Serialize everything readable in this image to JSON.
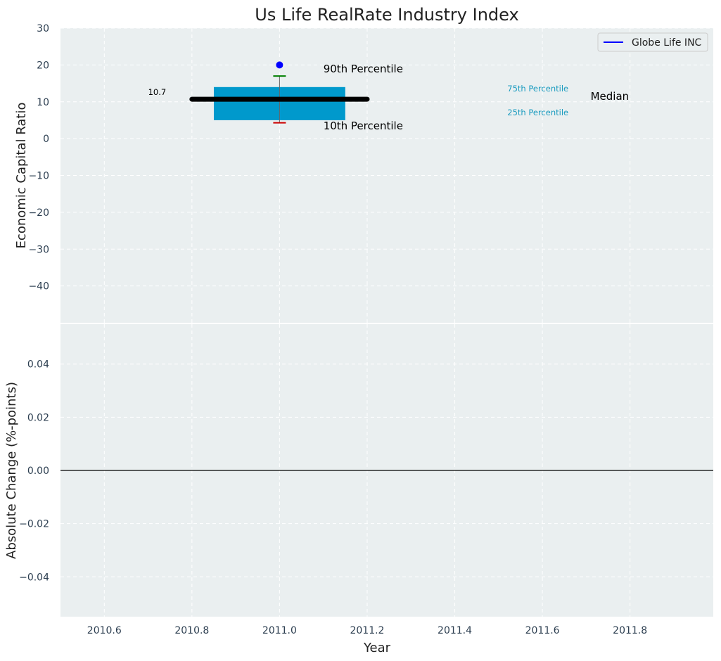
{
  "chart_data": [
    {
      "type": "box",
      "title": "Us Life RealRate Industry Index",
      "xlabel": "",
      "ylabel": "Economic Capital Ratio",
      "xlim": [
        2010.5,
        2011.99
      ],
      "ylim": [
        -50,
        30
      ],
      "yticks": [
        30,
        20,
        10,
        0,
        -10,
        -20,
        -30,
        -40
      ],
      "ytick_labels": [
        "30",
        "20",
        "10",
        "0",
        "−10",
        "−20",
        "−30",
        "−40"
      ],
      "grid": true,
      "legend": {
        "position": "top-right",
        "entries": [
          {
            "label": "Globe Life INC",
            "color": "#0000ff"
          }
        ]
      },
      "box": {
        "x": 2011.0,
        "x_left": 2010.85,
        "x_right": 2011.15,
        "q1": 5.0,
        "q3": 14.0,
        "p10": 4.3,
        "p90": 17.0,
        "median": 10.7,
        "median_x_start": 2010.8,
        "median_x_end": 2011.2,
        "outlier": 20.0,
        "box_color": "#0099cc",
        "median_color": "#000000",
        "p90_color": "#008000",
        "p10_color": "#cc0000",
        "outlier_color": "#0000ff"
      },
      "annotations": [
        {
          "text": "10.7",
          "x": 2010.7,
          "y": 11.9,
          "color": "#000000",
          "size": "small"
        },
        {
          "text": "90th Percentile",
          "x": 2011.1,
          "y": 18.0,
          "color": "#000000",
          "size": "large"
        },
        {
          "text": "10th Percentile",
          "x": 2011.1,
          "y": 2.5,
          "color": "#000000",
          "size": "large"
        },
        {
          "text": "75th Percentile",
          "x": 2011.52,
          "y": 12.8,
          "color": "#1a9bbf",
          "size": "small"
        },
        {
          "text": "25th Percentile",
          "x": 2011.52,
          "y": 6.3,
          "color": "#1a9bbf",
          "size": "small"
        },
        {
          "text": "Median",
          "x": 2011.71,
          "y": 10.5,
          "color": "#000000",
          "size": "large"
        }
      ]
    },
    {
      "type": "line",
      "title": "",
      "xlabel": "Year",
      "ylabel": "Absolute Change (%-points)",
      "xlim": [
        2010.5,
        2011.99
      ],
      "ylim": [
        -0.055,
        0.055
      ],
      "xticks": [
        2010.6,
        2010.8,
        2011.0,
        2011.2,
        2011.4,
        2011.6,
        2011.8
      ],
      "xtick_labels": [
        "2010.6",
        "2010.8",
        "2011.0",
        "2011.2",
        "2011.4",
        "2011.6",
        "2011.8"
      ],
      "yticks": [
        0.04,
        0.02,
        0.0,
        -0.02,
        -0.04
      ],
      "ytick_labels": [
        "0.04",
        "0.02",
        "0.00",
        "−0.02",
        "−0.04"
      ],
      "grid": true,
      "zero_line": {
        "y": 0.0,
        "color": "#000000"
      },
      "series": []
    }
  ]
}
